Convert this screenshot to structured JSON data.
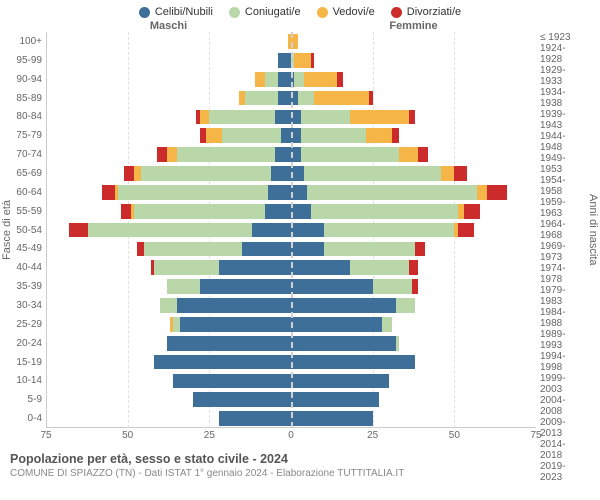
{
  "legend": [
    {
      "label": "Celibi/Nubili",
      "color": "#3d6f99"
    },
    {
      "label": "Coniugati/e",
      "color": "#b9d7a8"
    },
    {
      "label": "Vedovi/e",
      "color": "#f5b547"
    },
    {
      "label": "Divorziati/e",
      "color": "#cc2b2b"
    }
  ],
  "headers": {
    "left": "Maschi",
    "right": "Femmine"
  },
  "axis_labels": {
    "left": "Fasce di età",
    "right": "Anni di nascita"
  },
  "x": {
    "max": 75,
    "ticks": [
      75,
      50,
      25,
      0,
      25,
      50,
      75
    ]
  },
  "colors": {
    "celibi": "#3d6f99",
    "coniugati": "#b9d7a8",
    "vedovi": "#f5b547",
    "divorziati": "#cc2b2b",
    "grid": "#e0e0e0",
    "center": "#d0d0d0"
  },
  "rows": [
    {
      "age": "100+",
      "birth": "≤ 1923",
      "m": [
        0,
        0,
        1,
        0
      ],
      "f": [
        0,
        0,
        2,
        0
      ]
    },
    {
      "age": "95-99",
      "birth": "1924-1928",
      "m": [
        4,
        0,
        0,
        0
      ],
      "f": [
        0,
        1,
        5,
        1
      ]
    },
    {
      "age": "90-94",
      "birth": "1929-1933",
      "m": [
        4,
        4,
        3,
        0
      ],
      "f": [
        1,
        3,
        10,
        2
      ]
    },
    {
      "age": "85-89",
      "birth": "1934-1938",
      "m": [
        4,
        10,
        2,
        0
      ],
      "f": [
        2,
        5,
        17,
        1
      ]
    },
    {
      "age": "80-84",
      "birth": "1939-1943",
      "m": [
        5,
        20,
        3,
        1
      ],
      "f": [
        3,
        15,
        18,
        2
      ]
    },
    {
      "age": "75-79",
      "birth": "1944-1948",
      "m": [
        3,
        18,
        5,
        2
      ],
      "f": [
        3,
        20,
        8,
        2
      ]
    },
    {
      "age": "70-74",
      "birth": "1949-1953",
      "m": [
        5,
        30,
        3,
        3
      ],
      "f": [
        3,
        30,
        6,
        3
      ]
    },
    {
      "age": "65-69",
      "birth": "1954-1958",
      "m": [
        6,
        40,
        2,
        3
      ],
      "f": [
        4,
        42,
        4,
        4
      ]
    },
    {
      "age": "60-64",
      "birth": "1959-1963",
      "m": [
        7,
        46,
        1,
        4
      ],
      "f": [
        5,
        52,
        3,
        6
      ]
    },
    {
      "age": "55-59",
      "birth": "1964-1968",
      "m": [
        8,
        40,
        1,
        3
      ],
      "f": [
        6,
        45,
        2,
        5
      ]
    },
    {
      "age": "50-54",
      "birth": "1969-1973",
      "m": [
        12,
        50,
        0,
        6
      ],
      "f": [
        10,
        40,
        1,
        5
      ]
    },
    {
      "age": "45-49",
      "birth": "1974-1978",
      "m": [
        15,
        30,
        0,
        2
      ],
      "f": [
        10,
        28,
        0,
        3
      ]
    },
    {
      "age": "40-44",
      "birth": "1979-1983",
      "m": [
        22,
        20,
        0,
        1
      ],
      "f": [
        18,
        18,
        0,
        3
      ]
    },
    {
      "age": "35-39",
      "birth": "1984-1988",
      "m": [
        28,
        10,
        0,
        0
      ],
      "f": [
        25,
        12,
        0,
        2
      ]
    },
    {
      "age": "30-34",
      "birth": "1989-1993",
      "m": [
        35,
        5,
        0,
        0
      ],
      "f": [
        32,
        6,
        0,
        0
      ]
    },
    {
      "age": "25-29",
      "birth": "1994-1998",
      "m": [
        34,
        2,
        1,
        0
      ],
      "f": [
        28,
        3,
        0,
        0
      ]
    },
    {
      "age": "20-24",
      "birth": "1999-2003",
      "m": [
        38,
        0,
        0,
        0
      ],
      "f": [
        32,
        1,
        0,
        0
      ]
    },
    {
      "age": "15-19",
      "birth": "2004-2008",
      "m": [
        42,
        0,
        0,
        0
      ],
      "f": [
        38,
        0,
        0,
        0
      ]
    },
    {
      "age": "10-14",
      "birth": "2009-2013",
      "m": [
        36,
        0,
        0,
        0
      ],
      "f": [
        30,
        0,
        0,
        0
      ]
    },
    {
      "age": "5-9",
      "birth": "2014-2018",
      "m": [
        30,
        0,
        0,
        0
      ],
      "f": [
        27,
        0,
        0,
        0
      ]
    },
    {
      "age": "0-4",
      "birth": "2019-2023",
      "m": [
        22,
        0,
        0,
        0
      ],
      "f": [
        25,
        0,
        0,
        0
      ]
    }
  ],
  "footer": {
    "title": "Popolazione per età, sesso e stato civile - 2024",
    "subtitle": "COMUNE DI SPIAZZO (TN) - Dati ISTAT 1° gennaio 2024 - Elaborazione TUTTITALIA.IT"
  }
}
